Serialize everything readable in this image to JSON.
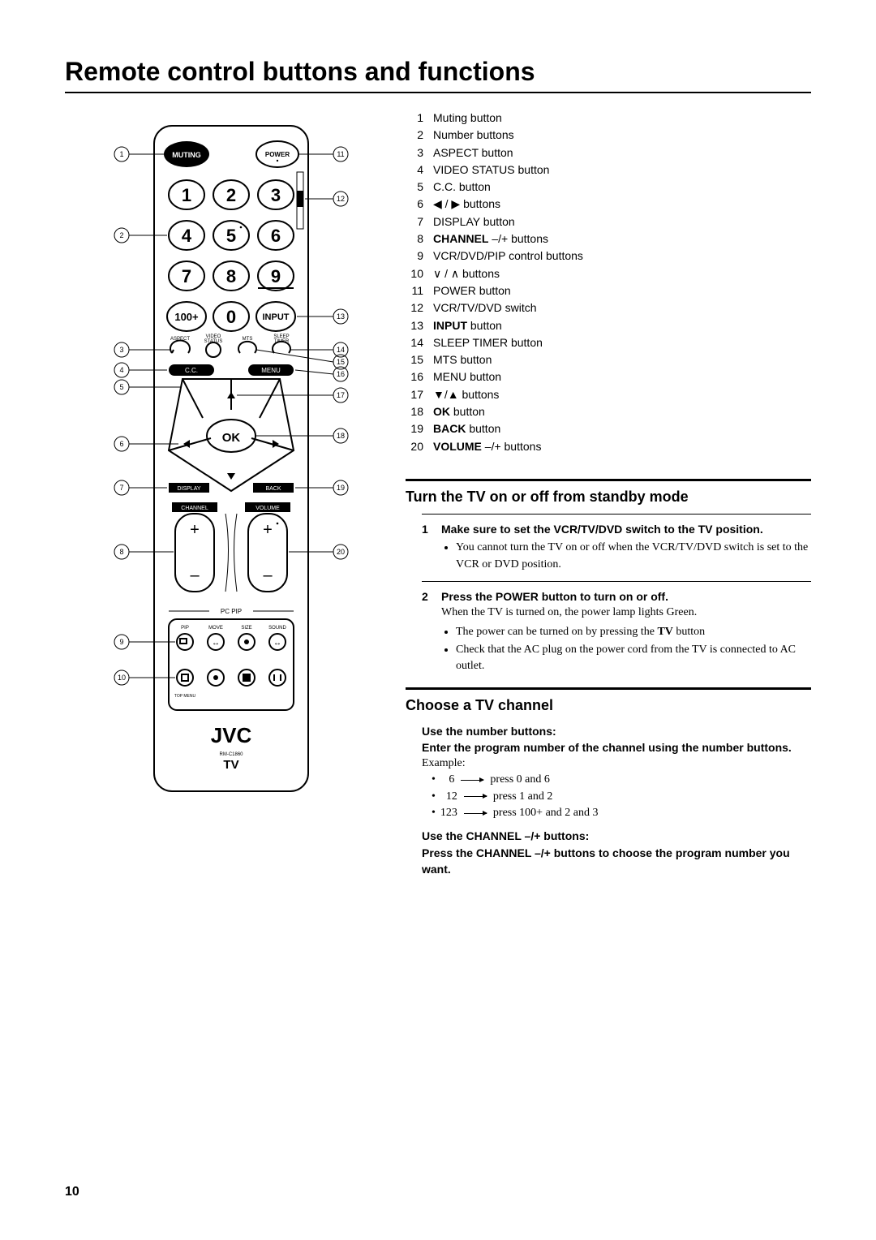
{
  "title": "Remote control buttons and functions",
  "page_number": "10",
  "button_list": [
    {
      "n": "1",
      "label": "Muting button"
    },
    {
      "n": "2",
      "label": "Number buttons"
    },
    {
      "n": "3",
      "label": "ASPECT  button"
    },
    {
      "n": "4",
      "label": "VIDEO STATUS button"
    },
    {
      "n": "5",
      "label": "C.C.  button"
    },
    {
      "n": "6",
      "label": "◀ / ▶  buttons"
    },
    {
      "n": "7",
      "label": "DISPLAY button"
    },
    {
      "n": "8",
      "prefix": "CHANNEL",
      "suffix": " –/+  buttons"
    },
    {
      "n": "9",
      "label": "VCR/DVD/PIP control buttons"
    },
    {
      "n": "10",
      "label": "∨ / ∧ buttons"
    },
    {
      "n": "11",
      "label": "POWER button"
    },
    {
      "n": "12",
      "label": "VCR/TV/DVD switch"
    },
    {
      "n": "13",
      "prefix": "INPUT",
      "suffix": "  button"
    },
    {
      "n": "14",
      "label": "SLEEP TIMER button"
    },
    {
      "n": "15",
      "label": "MTS button"
    },
    {
      "n": "16",
      "label": "MENU  button"
    },
    {
      "n": "17",
      "label": "▼/▲ buttons"
    },
    {
      "n": "18",
      "prefix": "OK",
      "suffix": "  button"
    },
    {
      "n": "19",
      "prefix": "BACK",
      "suffix": "  button"
    },
    {
      "n": "20",
      "prefix": "VOLUME",
      "suffix": " –/+  buttons"
    }
  ],
  "section1": {
    "heading": "Turn the TV on or off from standby mode",
    "step1_title": "Make sure to set the VCR/TV/DVD switch to the TV position.",
    "step1_bullet": "You cannot turn the TV on or off when the VCR/TV/DVD switch is set to the VCR or DVD position.",
    "step2_title": "Press the POWER button  to turn on or off.",
    "step2_intro": "When the TV is turned on, the power lamp lights Green.",
    "step2_b1a": "The power can be turned on by pressing the ",
    "step2_b1b": "TV",
    "step2_b1c": " button",
    "step2_b2": "Check that the AC plug on the power cord from the TV is connected to AC outlet."
  },
  "section2": {
    "heading": "Choose a TV channel",
    "use_num_title1": "Use the number buttons:",
    "use_num_title2": "Enter the program number of the channel using the number buttons.",
    "example_label": "Example:",
    "ex1a": "6",
    "ex1b": "press   0 and 6",
    "ex2a": "12",
    "ex2b": "press   1 and 2",
    "ex3a": "123",
    "ex3b": "press   100+ and 2 and 3",
    "use_ch_title": "Use the CHANNEL –/+  buttons:",
    "use_ch_body": "Press the CHANNEL –/+  buttons to choose the program number you want."
  },
  "remote": {
    "brand": "JVC",
    "model": "RM-C1860",
    "tv_label": "TV",
    "muting": "MUTING",
    "power": "POWER",
    "input": "INPUT",
    "hundred": "100+",
    "aspect": "ASPECT",
    "video_status": "VIDEO\nSTATUS",
    "mts": "MTS",
    "sleep": "SLEEP\nTIMER",
    "cc": "C.C.",
    "menu": "MENU",
    "ok": "OK",
    "display": "DISPLAY",
    "back": "BACK",
    "channel": "CHANNEL",
    "volume": "VOLUME",
    "pcpip": "PC PIP",
    "pip": "PIP",
    "move": "MOVE",
    "size": "SIZE",
    "sound": "SOUND",
    "top_menu": "TOP MENU"
  }
}
